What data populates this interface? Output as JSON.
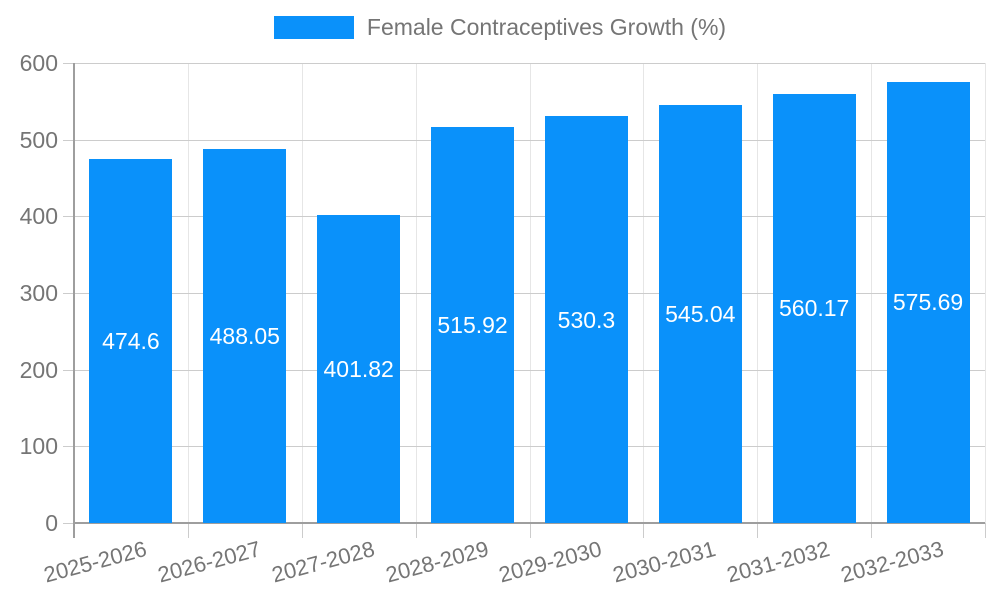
{
  "chart_data": {
    "type": "bar",
    "title": "Female Contraceptives Growth (%)",
    "categories": [
      "2025-2026",
      "2026-2027",
      "2027-2028",
      "2028-2029",
      "2029-2030",
      "2030-2031",
      "2031-2032",
      "2032-2033"
    ],
    "values": [
      474.6,
      488.05,
      401.82,
      515.92,
      530.3,
      545.04,
      560.17,
      575.69
    ],
    "bar_labels": [
      "474.6",
      "488.05",
      "401.82",
      "515.92",
      "530.3",
      "545.04",
      "560.17",
      "575.69"
    ],
    "xlabel": "",
    "ylabel": "",
    "ylim": [
      0,
      600
    ],
    "yticks": [
      0,
      100,
      200,
      300,
      400,
      500,
      600
    ],
    "grid": "on",
    "legend_position": "top-center",
    "colors": {
      "bar": "#0A91FA",
      "bar_label": "#FFFFFF",
      "axis_text": "#757575",
      "grid_major": "#CCCCCC",
      "grid_minor": "#E6E6E6",
      "axis_line": "#9E9E9E",
      "background": "#FFFFFF"
    }
  }
}
